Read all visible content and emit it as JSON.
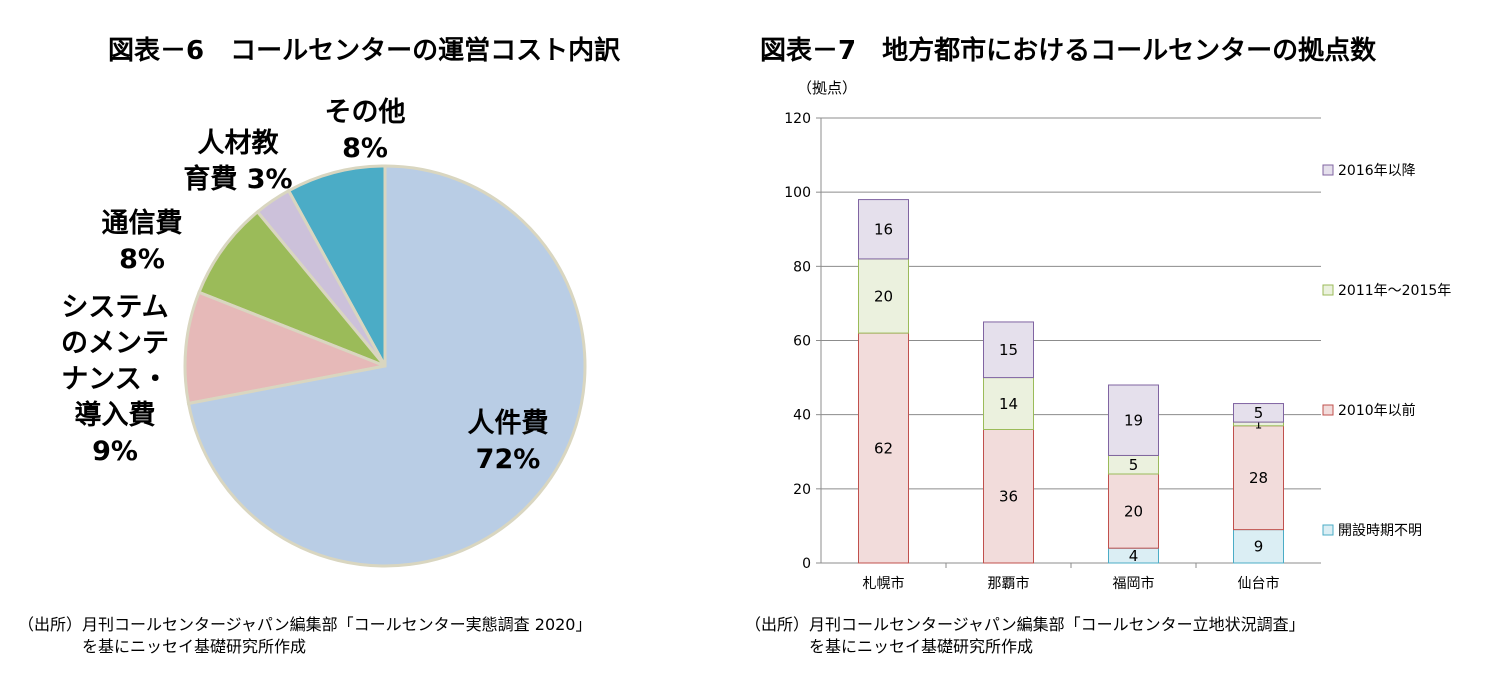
{
  "left_chart": {
    "title": "図表－6　コールセンターの運営コスト内訳",
    "source_line1": "（出所）月刊コールセンタージャパン編集部「コールセンター実態調査 2020」",
    "source_line2": "を基にニッセイ基礎研究所作成"
  },
  "right_chart": {
    "title": "図表－7　地方都市におけるコールセンターの拠点数",
    "source_line1": "（出所）月刊コールセンタージャパン編集部「コールセンター立地状況調査」",
    "source_line2": "を基にニッセイ基礎研究所作成"
  },
  "chart_data": [
    {
      "type": "pie",
      "title": "図表－6　コールセンターの運営コスト内訳",
      "slices": [
        {
          "label_lines": [
            "その他"
          ],
          "pct": "8%",
          "value": 8,
          "color": "#4bacc6"
        },
        {
          "label_lines": [
            "人材教",
            "育費"
          ],
          "pct": "3%",
          "value": 3,
          "color": "#ccc1da"
        },
        {
          "label_lines": [
            "通信費"
          ],
          "pct": "8%",
          "value": 8,
          "color": "#9bbb59"
        },
        {
          "label_lines": [
            "システム",
            "のメンテ",
            "ナンス・",
            "導入費"
          ],
          "pct": "9%",
          "value": 9,
          "color": "#e6b9b8"
        },
        {
          "label_lines": [
            "人件費"
          ],
          "pct": "72%",
          "value": 72,
          "color": "#b9cde5"
        }
      ],
      "edge_color": "#d9d6c0"
    },
    {
      "type": "bar",
      "stacked": true,
      "title": "図表－7　地方都市におけるコールセンターの拠点数",
      "ylabel": "（拠点）",
      "ylim": [
        0,
        120
      ],
      "yticks": [
        "0",
        "20",
        "40",
        "60",
        "80",
        "100",
        "120"
      ],
      "categories": [
        "札幌市",
        "那覇市",
        "福岡市",
        "仙台市"
      ],
      "grid": true,
      "legend_position": "right",
      "series": [
        {
          "name": "開設時期不明",
          "values": [
            0,
            0,
            4,
            9
          ],
          "fill": "#dbeef4",
          "stroke": "#4bacc6"
        },
        {
          "name": "2010年以前",
          "values": [
            62,
            36,
            20,
            28
          ],
          "fill": "#f2dcdb",
          "stroke": "#c0504d"
        },
        {
          "name": "2011年～2015年",
          "values": [
            20,
            14,
            5,
            1
          ],
          "fill": "#ebf1de",
          "stroke": "#9bbb59"
        },
        {
          "name": "2016年以降",
          "values": [
            16,
            15,
            19,
            5
          ],
          "fill": "#e5e0ec",
          "stroke": "#8064a2"
        }
      ]
    }
  ]
}
